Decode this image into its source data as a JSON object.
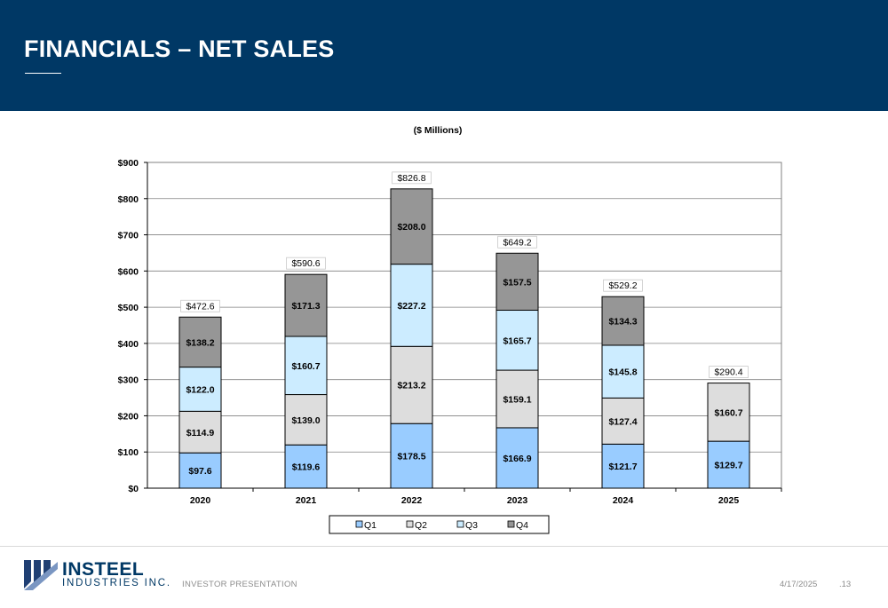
{
  "header": {
    "title": "FINANCIALS – NET SALES"
  },
  "footer": {
    "logo_name": "INSTEEL",
    "logo_sub": "INDUSTRIES INC.",
    "label": "INVESTOR PRESENTATION",
    "date": "4/17/2025",
    "page": ".13"
  },
  "colors": {
    "header_bg": "#003865",
    "q1": "#99CCFF",
    "q2": "#DDDDDD",
    "q3": "#CCECFF",
    "q4": "#969696"
  },
  "chart_data": {
    "type": "bar",
    "stacked": true,
    "title": "($ Millions)",
    "xlabel": "",
    "ylabel": "",
    "categories": [
      "2020",
      "2021",
      "2022",
      "2023",
      "2024",
      "2025"
    ],
    "series": [
      {
        "name": "Q1",
        "values": [
          97.6,
          119.6,
          178.5,
          166.9,
          121.7,
          129.7
        ],
        "labels": [
          "$97.6",
          "$119.6",
          "$178.5",
          "$166.9",
          "$121.7",
          "$129.7"
        ]
      },
      {
        "name": "Q2",
        "values": [
          114.9,
          139.0,
          213.2,
          159.1,
          127.4,
          160.7
        ],
        "labels": [
          "$114.9",
          "$139.0",
          "$213.2",
          "$159.1",
          "$127.4",
          "$160.7"
        ]
      },
      {
        "name": "Q3",
        "values": [
          122.0,
          160.7,
          227.2,
          165.7,
          145.8,
          null
        ],
        "labels": [
          "$122.0",
          "$160.7",
          "$227.2",
          "$165.7",
          "$145.8",
          ""
        ]
      },
      {
        "name": "Q4",
        "values": [
          138.2,
          171.3,
          208.0,
          157.5,
          134.3,
          null
        ],
        "labels": [
          "$138.2",
          "$171.3",
          "$208.0",
          "$157.5",
          "$134.3",
          ""
        ]
      }
    ],
    "totals": [
      "$472.6",
      "$590.6",
      "$826.8",
      "$649.2",
      "$529.2",
      "$290.4"
    ],
    "total_values": [
      472.6,
      590.6,
      826.8,
      649.2,
      529.2,
      290.4
    ],
    "ylim": [
      0,
      900
    ],
    "yticks": [
      0,
      100,
      200,
      300,
      400,
      500,
      600,
      700,
      800,
      900
    ],
    "ytick_labels": [
      "$0",
      "$100",
      "$200",
      "$300",
      "$400",
      "$500",
      "$600",
      "$700",
      "$800",
      "$900"
    ],
    "grid": true,
    "legend": "bottom"
  }
}
